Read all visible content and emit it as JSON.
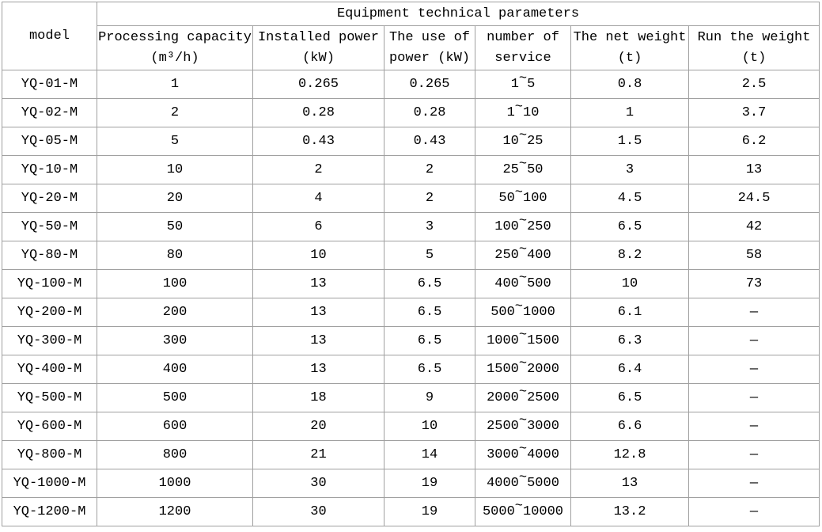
{
  "table": {
    "title": "Equipment technical parameters",
    "model_header": "model",
    "columns": [
      {
        "line1": "Processing capacity",
        "line2": "(m³/h)"
      },
      {
        "line1": "Installed power",
        "line2": "(kW)"
      },
      {
        "line1": "The use of",
        "line2": "power (kW)"
      },
      {
        "line1": "number of",
        "line2": "service"
      },
      {
        "line1": "The net weight",
        "line2": "(t)"
      },
      {
        "line1": "Run the weight",
        "line2": "(t)"
      }
    ],
    "column_keys": [
      "model",
      "processing_capacity",
      "installed_power",
      "use_of_power",
      "number_of_service",
      "net_weight",
      "run_weight"
    ],
    "rows": [
      {
        "model": "YQ-01-M",
        "processing_capacity": "1",
        "installed_power": "0.265",
        "use_of_power": "0.265",
        "number_of_service": "1~5",
        "net_weight": "0.8",
        "run_weight": "2.5"
      },
      {
        "model": "YQ-02-M",
        "processing_capacity": "2",
        "installed_power": "0.28",
        "use_of_power": "0.28",
        "number_of_service": "1~10",
        "net_weight": "1",
        "run_weight": "3.7"
      },
      {
        "model": "YQ-05-M",
        "processing_capacity": "5",
        "installed_power": "0.43",
        "use_of_power": "0.43",
        "number_of_service": "10~25",
        "net_weight": "1.5",
        "run_weight": "6.2"
      },
      {
        "model": "YQ-10-M",
        "processing_capacity": "10",
        "installed_power": "2",
        "use_of_power": "2",
        "number_of_service": "25~50",
        "net_weight": "3",
        "run_weight": "13"
      },
      {
        "model": "YQ-20-M",
        "processing_capacity": "20",
        "installed_power": "4",
        "use_of_power": "2",
        "number_of_service": "50~100",
        "net_weight": "4.5",
        "run_weight": "24.5"
      },
      {
        "model": "YQ-50-M",
        "processing_capacity": "50",
        "installed_power": "6",
        "use_of_power": "3",
        "number_of_service": "100~250",
        "net_weight": "6.5",
        "run_weight": "42"
      },
      {
        "model": "YQ-80-M",
        "processing_capacity": "80",
        "installed_power": "10",
        "use_of_power": "5",
        "number_of_service": "250~400",
        "net_weight": "8.2",
        "run_weight": "58"
      },
      {
        "model": "YQ-100-M",
        "processing_capacity": "100",
        "installed_power": "13",
        "use_of_power": "6.5",
        "number_of_service": "400~500",
        "net_weight": "10",
        "run_weight": "73"
      },
      {
        "model": "YQ-200-M",
        "processing_capacity": "200",
        "installed_power": "13",
        "use_of_power": "6.5",
        "number_of_service": "500~1000",
        "net_weight": "6.1",
        "run_weight": "—"
      },
      {
        "model": "YQ-300-M",
        "processing_capacity": "300",
        "installed_power": "13",
        "use_of_power": "6.5",
        "number_of_service": "1000~1500",
        "net_weight": "6.3",
        "run_weight": "—"
      },
      {
        "model": "YQ-400-M",
        "processing_capacity": "400",
        "installed_power": "13",
        "use_of_power": "6.5",
        "number_of_service": "1500~2000",
        "net_weight": "6.4",
        "run_weight": "—"
      },
      {
        "model": "YQ-500-M",
        "processing_capacity": "500",
        "installed_power": "18",
        "use_of_power": "9",
        "number_of_service": "2000~2500",
        "net_weight": "6.5",
        "run_weight": "—"
      },
      {
        "model": "YQ-600-M",
        "processing_capacity": "600",
        "installed_power": "20",
        "use_of_power": "10",
        "number_of_service": "2500~3000",
        "net_weight": "6.6",
        "run_weight": "—"
      },
      {
        "model": "YQ-800-M",
        "processing_capacity": "800",
        "installed_power": "21",
        "use_of_power": "14",
        "number_of_service": "3000~4000",
        "net_weight": "12.8",
        "run_weight": "—"
      },
      {
        "model": "YQ-1000-M",
        "processing_capacity": "1000",
        "installed_power": "30",
        "use_of_power": "19",
        "number_of_service": "4000~5000",
        "net_weight": "13",
        "run_weight": "—"
      },
      {
        "model": "YQ-1200-M",
        "processing_capacity": "1200",
        "installed_power": "30",
        "use_of_power": "19",
        "number_of_service": "5000~10000",
        "net_weight": "13.2",
        "run_weight": "—"
      }
    ],
    "colors": {
      "border": "#a0a0a0",
      "text": "#000000",
      "background": "#ffffff"
    }
  }
}
